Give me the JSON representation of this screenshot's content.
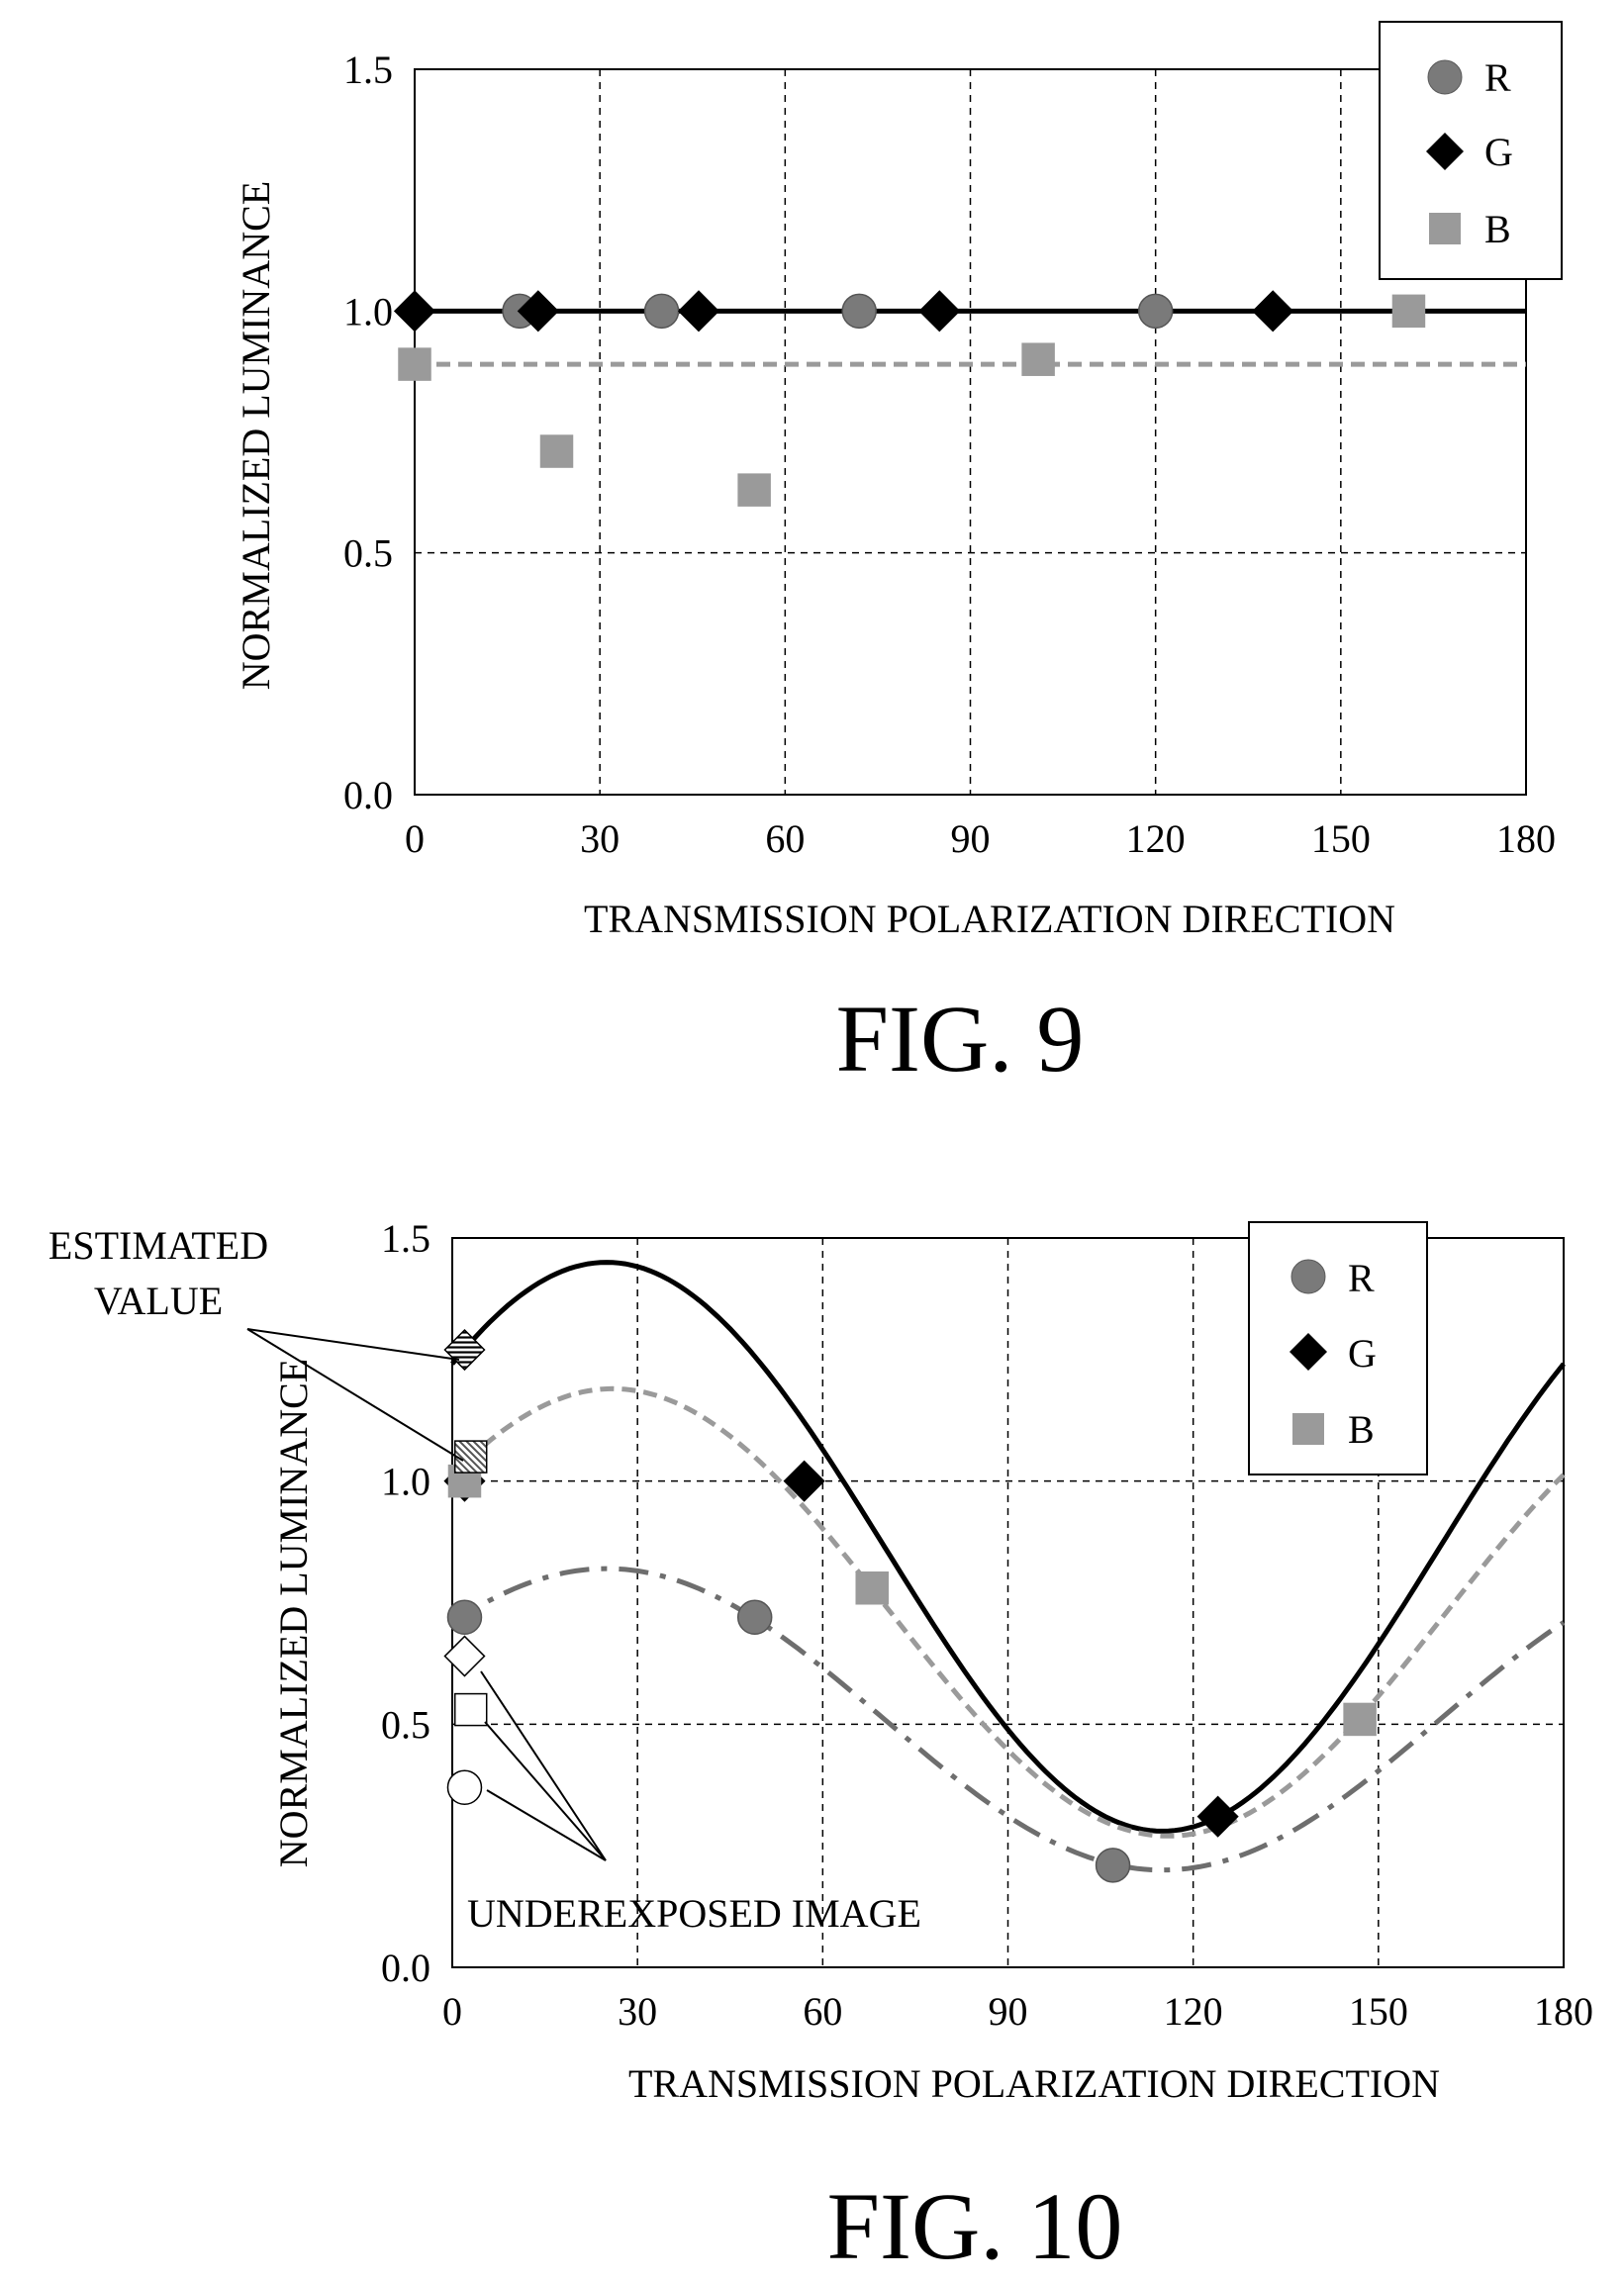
{
  "chart_data": [
    {
      "type": "scatter",
      "figure_label": "FIG. 9",
      "xlabel": "TRANSMISSION POLARIZATION DIRECTION",
      "ylabel": "NORMALIZED LUMINANCE",
      "xlim": [
        0,
        180
      ],
      "ylim": [
        0,
        1.5
      ],
      "xticks": [
        "0",
        "30",
        "60",
        "90",
        "120",
        "150",
        "180"
      ],
      "yticks": [
        "0.0",
        "0.5",
        "1.0",
        "1.5"
      ],
      "grid": "dashed",
      "legend_position": "top-right",
      "legend": [
        {
          "label": "R",
          "marker": "circle"
        },
        {
          "label": "G",
          "marker": "diamond"
        },
        {
          "label": "B",
          "marker": "square"
        }
      ],
      "series": [
        {
          "name": "R",
          "marker": "circle",
          "color": "#7a7a7a",
          "x": [
            17,
            40,
            72,
            120
          ],
          "y": [
            1.0,
            1.0,
            1.0,
            1.0
          ]
        },
        {
          "name": "G",
          "marker": "diamond",
          "color": "#000000",
          "x": [
            0,
            20,
            46,
            85,
            139
          ],
          "y": [
            1.0,
            1.0,
            1.0,
            1.0,
            1.0
          ]
        },
        {
          "name": "B",
          "marker": "square",
          "color": "#9a9a9a",
          "x": [
            0,
            23,
            55,
            101,
            161
          ],
          "y": [
            0.89,
            0.71,
            0.63,
            0.9,
            1.0
          ]
        }
      ],
      "fit_lines": [
        {
          "series": "G",
          "style": "solid",
          "color": "#000000",
          "type": "constant",
          "value": 1.0
        },
        {
          "series": "B",
          "style": "dashed",
          "color": "#9a9a9a",
          "type": "constant",
          "value": 0.89
        }
      ]
    },
    {
      "type": "scatter",
      "figure_label": "FIG. 10",
      "xlabel": "TRANSMISSION POLARIZATION DIRECTION",
      "ylabel": "NORMALIZED LUMINANCE",
      "xlim": [
        0,
        180
      ],
      "ylim": [
        0,
        1.5
      ],
      "xticks": [
        "0",
        "30",
        "60",
        "90",
        "120",
        "150",
        "180"
      ],
      "yticks": [
        "0.0",
        "0.5",
        "1.0",
        "1.5"
      ],
      "grid": "dashed",
      "legend_position": "top-right",
      "legend": [
        {
          "label": "R",
          "marker": "circle"
        },
        {
          "label": "G",
          "marker": "diamond"
        },
        {
          "label": "B",
          "marker": "square"
        }
      ],
      "series": [
        {
          "name": "R",
          "marker": "circle",
          "color": "#7a7a7a",
          "x": [
            2,
            49,
            107
          ],
          "y": [
            0.72,
            0.72,
            0.21
          ]
        },
        {
          "name": "G",
          "marker": "diamond",
          "color": "#000000",
          "x": [
            2,
            57,
            124
          ],
          "y": [
            1.0,
            1.0,
            0.31
          ]
        },
        {
          "name": "B",
          "marker": "square",
          "color": "#9a9a9a",
          "x": [
            2,
            68,
            147
          ],
          "y": [
            1.0,
            0.78,
            0.51
          ]
        }
      ],
      "fit_curves": [
        {
          "series": "G",
          "style": "solid",
          "color": "#000000",
          "type": "cosine",
          "offset": 0.865,
          "amplitude": 0.585,
          "peak_x": 25
        },
        {
          "series": "B",
          "style": "dashed",
          "color": "#9a9a9a",
          "type": "cosine",
          "offset": 0.73,
          "amplitude": 0.46,
          "peak_x": 26
        },
        {
          "series": "R",
          "style": "dash-dot",
          "color": "#6e6e6e",
          "type": "cosine",
          "offset": 0.51,
          "amplitude": 0.31,
          "peak_x": 25
        }
      ],
      "estimated_points": [
        {
          "marker": "diamond",
          "x": 2,
          "y": 1.27
        },
        {
          "marker": "square",
          "x": 3,
          "y": 1.05
        }
      ],
      "underexposed_points": [
        {
          "marker": "diamond",
          "x": 2,
          "y": 0.64
        },
        {
          "marker": "square",
          "x": 3,
          "y": 0.53
        },
        {
          "marker": "circle",
          "x": 2,
          "y": 0.37
        }
      ],
      "annotations": {
        "estimated": [
          "ESTIMATED",
          "VALUE"
        ],
        "underexposed": "UNDEREXPOSED IMAGE"
      }
    }
  ]
}
